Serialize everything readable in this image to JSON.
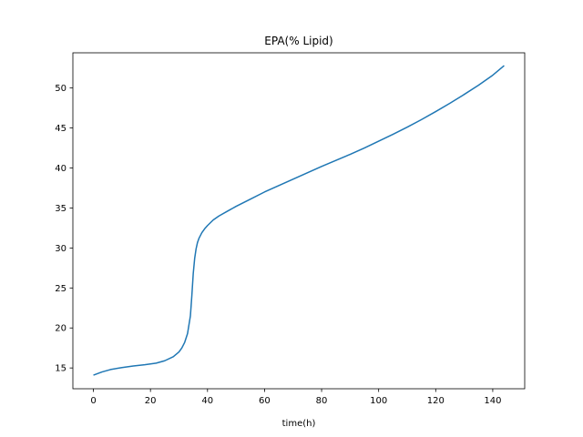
{
  "chart_data": {
    "type": "line",
    "title": "EPA(% Lipid)",
    "xlabel": "time(h)",
    "ylabel": "",
    "xlim": [
      -7.2,
      151.2
    ],
    "ylim": [
      12.4,
      54.4
    ],
    "xticks": [
      0,
      20,
      40,
      60,
      80,
      100,
      120,
      140
    ],
    "yticks": [
      15,
      20,
      25,
      30,
      35,
      40,
      45,
      50
    ],
    "grid": false,
    "series": [
      {
        "color": "#1f77b4",
        "x": [
          0,
          3,
          6,
          10,
          14,
          18,
          22,
          25,
          28,
          30,
          31,
          32,
          33,
          34,
          34.5,
          35,
          35.5,
          36,
          36.5,
          37,
          38,
          39,
          40,
          42,
          44,
          47,
          50,
          55,
          60,
          65,
          70,
          75,
          80,
          85,
          90,
          95,
          100,
          105,
          110,
          115,
          120,
          125,
          130,
          135,
          140,
          144
        ],
        "y": [
          14.1,
          14.5,
          14.8,
          15.05,
          15.25,
          15.4,
          15.6,
          15.9,
          16.4,
          17.0,
          17.5,
          18.2,
          19.3,
          21.5,
          24.0,
          26.8,
          28.7,
          29.9,
          30.7,
          31.2,
          31.9,
          32.4,
          32.8,
          33.5,
          34.0,
          34.6,
          35.2,
          36.1,
          37.0,
          37.8,
          38.6,
          39.4,
          40.2,
          40.95,
          41.7,
          42.5,
          43.35,
          44.2,
          45.1,
          46.05,
          47.05,
          48.1,
          49.2,
          50.35,
          51.6,
          52.8
        ]
      }
    ]
  }
}
